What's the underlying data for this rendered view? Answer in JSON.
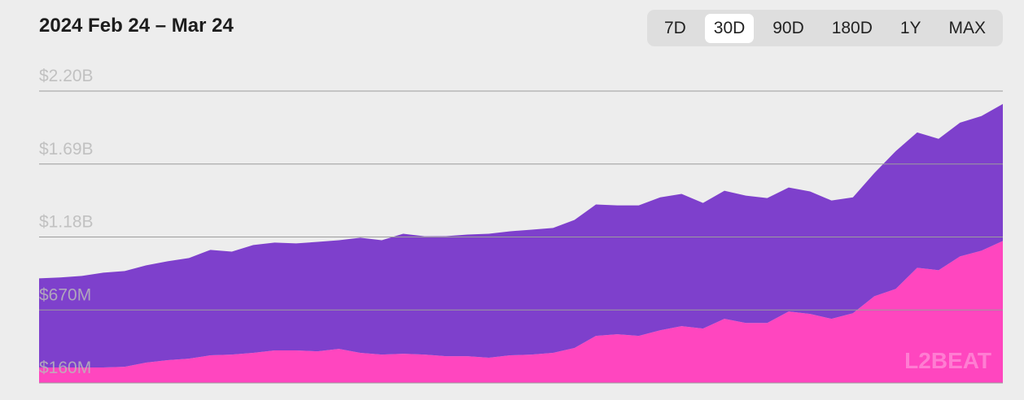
{
  "header": {
    "title": "2024 Feb 24 – Mar 24"
  },
  "range_buttons": [
    {
      "label": "7D",
      "active": false
    },
    {
      "label": "30D",
      "active": true
    },
    {
      "label": "90D",
      "active": false
    },
    {
      "label": "180D",
      "active": false
    },
    {
      "label": "1Y",
      "active": false
    },
    {
      "label": "MAX",
      "active": false
    }
  ],
  "watermark": "L2BEAT",
  "chart_data": {
    "type": "area",
    "stacked": true,
    "grid": true,
    "ylim": [
      160000000,
      2200000000
    ],
    "yticks": [
      {
        "value": 160000000,
        "label": "$160M"
      },
      {
        "value": 670000000,
        "label": "$670M"
      },
      {
        "value": 1180000000,
        "label": "$1.18B"
      },
      {
        "value": 1690000000,
        "label": "$1.69B"
      },
      {
        "value": 2200000000,
        "label": "$2.20B"
      }
    ],
    "series": [
      {
        "color": "#ff46bf",
        "values": [
          268000000,
          268000000,
          268000000,
          268000000,
          273000000,
          302000000,
          319000000,
          330000000,
          353000000,
          358000000,
          370000000,
          387000000,
          387000000,
          381000000,
          398000000,
          370000000,
          358000000,
          364000000,
          358000000,
          347000000,
          347000000,
          336000000,
          353000000,
          358000000,
          370000000,
          404000000,
          489000000,
          500000000,
          489000000,
          528000000,
          557000000,
          540000000,
          608000000,
          579000000,
          579000000,
          659000000,
          642000000,
          608000000,
          647000000,
          766000000,
          817000000,
          965000000,
          948000000,
          1044000000,
          1084000000,
          1152000000
        ]
      },
      {
        "color": "#7e40cc",
        "values": [
          623000000,
          629000000,
          640000000,
          663000000,
          669000000,
          680000000,
          691000000,
          703000000,
          737000000,
          720000000,
          754000000,
          754000000,
          748000000,
          765000000,
          759000000,
          805000000,
          799000000,
          839000000,
          827000000,
          839000000,
          850000000,
          867000000,
          867000000,
          873000000,
          873000000,
          895000000,
          918000000,
          901000000,
          912000000,
          929000000,
          924000000,
          878000000,
          895000000,
          890000000,
          873000000,
          867000000,
          856000000,
          827000000,
          810000000,
          861000000,
          963000000,
          946000000,
          918000000,
          935000000,
          941000000,
          958000000
        ]
      }
    ]
  }
}
